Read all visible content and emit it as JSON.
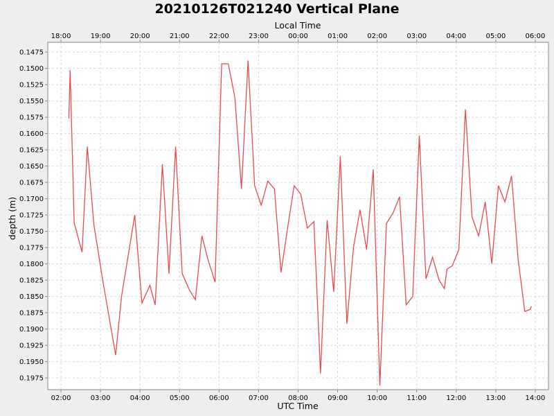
{
  "chart_data": {
    "type": "line",
    "title": "20210126T021240 Vertical Plane",
    "top_axis_label": "Local Time",
    "xlabel": "UTC Time",
    "ylabel": "depth (m)",
    "y_inverted": true,
    "ylim": [
      0.146,
      0.1993
    ],
    "xlim": [
      "01:40",
      "14:20"
    ],
    "top_axis_offset_hours": 16,
    "x_ticks": [
      "02:00",
      "03:00",
      "04:00",
      "05:00",
      "06:00",
      "07:00",
      "08:00",
      "09:00",
      "10:00",
      "11:00",
      "12:00",
      "13:00",
      "14:00"
    ],
    "top_ticks": [
      "18:00",
      "19:00",
      "20:00",
      "21:00",
      "22:00",
      "23:00",
      "00:00",
      "01:00",
      "02:00",
      "03:00",
      "04:00",
      "05:00",
      "06:00"
    ],
    "y_ticks": [
      "0.1475",
      "0.1500",
      "0.1525",
      "0.1550",
      "0.1575",
      "0.1600",
      "0.1625",
      "0.1650",
      "0.1675",
      "0.1700",
      "0.1725",
      "0.1750",
      "0.1775",
      "0.1800",
      "0.1825",
      "0.1850",
      "0.1875",
      "0.1900",
      "0.1925",
      "0.1950",
      "0.1975"
    ],
    "grid": true,
    "series": [
      {
        "color": "#e8494f",
        "x": [
          "02:12",
          "02:14",
          "02:20",
          "02:32",
          "02:40",
          "02:50",
          "03:03",
          "03:23",
          "03:32",
          "03:52",
          "04:03",
          "04:15",
          "04:23",
          "04:34",
          "04:44",
          "04:54",
          "05:04",
          "05:15",
          "05:24",
          "05:34",
          "05:43",
          "05:54",
          "06:04",
          "06:14",
          "06:24",
          "06:34",
          "06:44",
          "06:54",
          "07:04",
          "07:14",
          "07:24",
          "07:34",
          "07:44",
          "07:54",
          "08:04",
          "08:14",
          "08:24",
          "08:34",
          "08:44",
          "08:54",
          "09:04",
          "09:14",
          "09:24",
          "09:34",
          "09:44",
          "09:54",
          "10:04",
          "10:14",
          "10:24",
          "10:34",
          "10:44",
          "10:54",
          "11:04",
          "11:14",
          "11:24",
          "11:34",
          "11:42",
          "11:46",
          "11:54",
          "12:04",
          "12:14",
          "12:24",
          "12:34",
          "12:44",
          "12:54",
          "13:04",
          "13:14",
          "13:24",
          "13:34",
          "13:44",
          "13:52",
          "13:54"
        ],
        "y": [
          0.1577,
          0.1503,
          0.1737,
          0.1782,
          0.162,
          0.174,
          0.1823,
          0.194,
          0.185,
          0.1725,
          0.186,
          0.1833,
          0.1863,
          0.1647,
          0.1815,
          0.162,
          0.1815,
          0.184,
          0.1855,
          0.1757,
          0.1793,
          0.1828,
          0.1493,
          0.1493,
          0.1545,
          0.1685,
          0.1488,
          0.168,
          0.171,
          0.1673,
          0.1685,
          0.1813,
          0.1745,
          0.168,
          0.1693,
          0.1745,
          0.1735,
          0.1968,
          0.1733,
          0.1843,
          0.1635,
          0.1892,
          0.1775,
          0.1717,
          0.1778,
          0.1655,
          0.1987,
          0.1738,
          0.1722,
          0.1697,
          0.1863,
          0.185,
          0.1603,
          0.1823,
          0.179,
          0.1825,
          0.1838,
          0.1808,
          0.1803,
          0.1778,
          0.1563,
          0.1728,
          0.1757,
          0.1705,
          0.18,
          0.168,
          0.1705,
          0.1665,
          0.1793,
          0.1873,
          0.187,
          0.1865
        ]
      }
    ]
  }
}
